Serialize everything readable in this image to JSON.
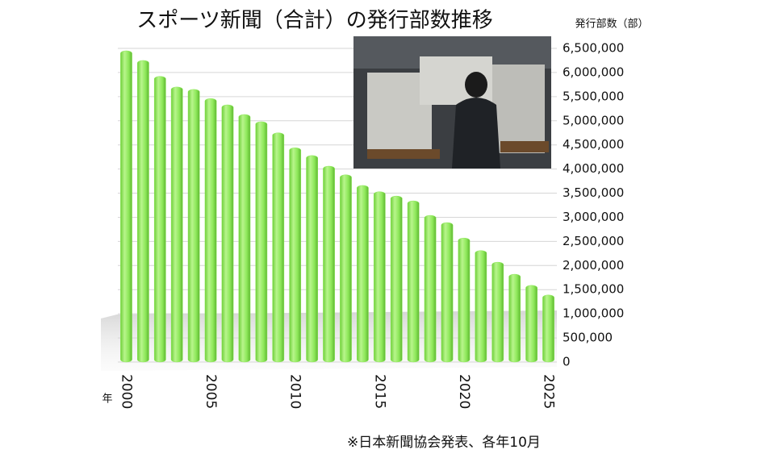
{
  "chart_data": {
    "type": "bar",
    "title": "スポーツ新聞（合計）の発行部数推移",
    "y_label": "発行部数（部）",
    "x_label": "年",
    "note": "※日本新聞協会発表、各年10月",
    "categories": [
      "2000",
      null,
      null,
      null,
      null,
      "2005",
      null,
      null,
      null,
      null,
      "2010",
      null,
      null,
      null,
      null,
      "2015",
      null,
      null,
      null,
      null,
      "2020",
      null,
      null,
      null,
      null,
      "2025"
    ],
    "values": [
      6450000,
      6250000,
      5920000,
      5700000,
      5650000,
      5460000,
      5330000,
      5130000,
      4980000,
      4750000,
      4440000,
      4280000,
      4060000,
      3880000,
      3660000,
      3530000,
      3440000,
      3340000,
      3040000,
      2890000,
      2570000,
      2310000,
      2070000,
      1820000,
      1590000,
      1390000
    ],
    "color": "#8ee85a",
    "ylim": [
      0,
      6500000
    ],
    "yticks": [
      0,
      {
        "value": 500000,
        "label": "500,000"
      },
      {
        "value": 1000000,
        "label": "1,000,000"
      },
      {
        "value": 1500000,
        "label": "1,500,000"
      },
      {
        "value": 2000000,
        "label": "2,000,000"
      },
      {
        "value": 2500000,
        "label": "2,500,000"
      },
      {
        "value": 3000000,
        "label": "3,000,000"
      },
      {
        "value": 3500000,
        "label": "3,500,000"
      },
      {
        "value": 4000000,
        "label": "4,000,000"
      },
      {
        "value": 4500000,
        "label": "4,500,000"
      },
      {
        "value": 5000000,
        "label": "5,000,000"
      },
      {
        "value": 5500000,
        "label": "5,500,000"
      },
      {
        "value": 6000000,
        "label": "6,000,000"
      },
      {
        "value": 6500000,
        "label": "6,500,000"
      }
    ],
    "grid": true
  }
}
